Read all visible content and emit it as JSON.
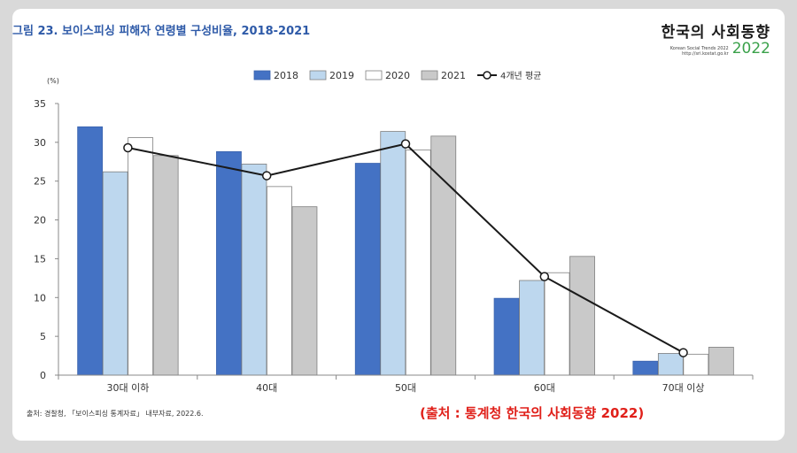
{
  "figure_title": "그림 23. 보이스피싱 피해자 연령별 구성비율, 2018-2021",
  "brand": {
    "name": "한국의 사회동향",
    "subtitle": "Korean Social Trends 2022",
    "url": "http://sri.kostat.go.kr",
    "year": "2022"
  },
  "source_note": "출처: 경찰청, 「보이스피싱 통계자료」 내부자료, 2022.6.",
  "source_red": "(출처 : 통계청 한국의 사회동향 2022)",
  "colors": {
    "2018": "#4472c4",
    "2019": "#bdd7ee",
    "2020": "#ffffff",
    "2021": "#c9c9c9",
    "avg_line": "#1a1a1a",
    "title": "#2e5aa8",
    "source_red": "#e0201a"
  },
  "chart_data": {
    "type": "bar",
    "title": "보이스피싱 피해자 연령별 구성비율, 2018-2021",
    "ylabel": "(%)",
    "xlabel": "",
    "ylim": [
      0,
      35
    ],
    "yticks": [
      0,
      5,
      10,
      15,
      20,
      25,
      30,
      35
    ],
    "categories": [
      "30대 이하",
      "40대",
      "50대",
      "60대",
      "70대 이상"
    ],
    "series": [
      {
        "name": "2018",
        "values": [
          32.0,
          28.8,
          27.3,
          9.9,
          1.8
        ]
      },
      {
        "name": "2019",
        "values": [
          26.2,
          27.2,
          31.4,
          12.2,
          2.8
        ]
      },
      {
        "name": "2020",
        "values": [
          30.6,
          24.3,
          29.0,
          13.2,
          2.7
        ]
      },
      {
        "name": "2021",
        "values": [
          28.3,
          21.7,
          30.8,
          15.3,
          3.6
        ]
      }
    ],
    "line_series": {
      "name": "4개년 평균",
      "values": [
        29.3,
        25.7,
        29.8,
        12.7,
        2.9
      ]
    },
    "legend": [
      "2018",
      "2019",
      "2020",
      "2021",
      "4개년 평균"
    ],
    "legend_position": "top-center",
    "grid": false
  }
}
